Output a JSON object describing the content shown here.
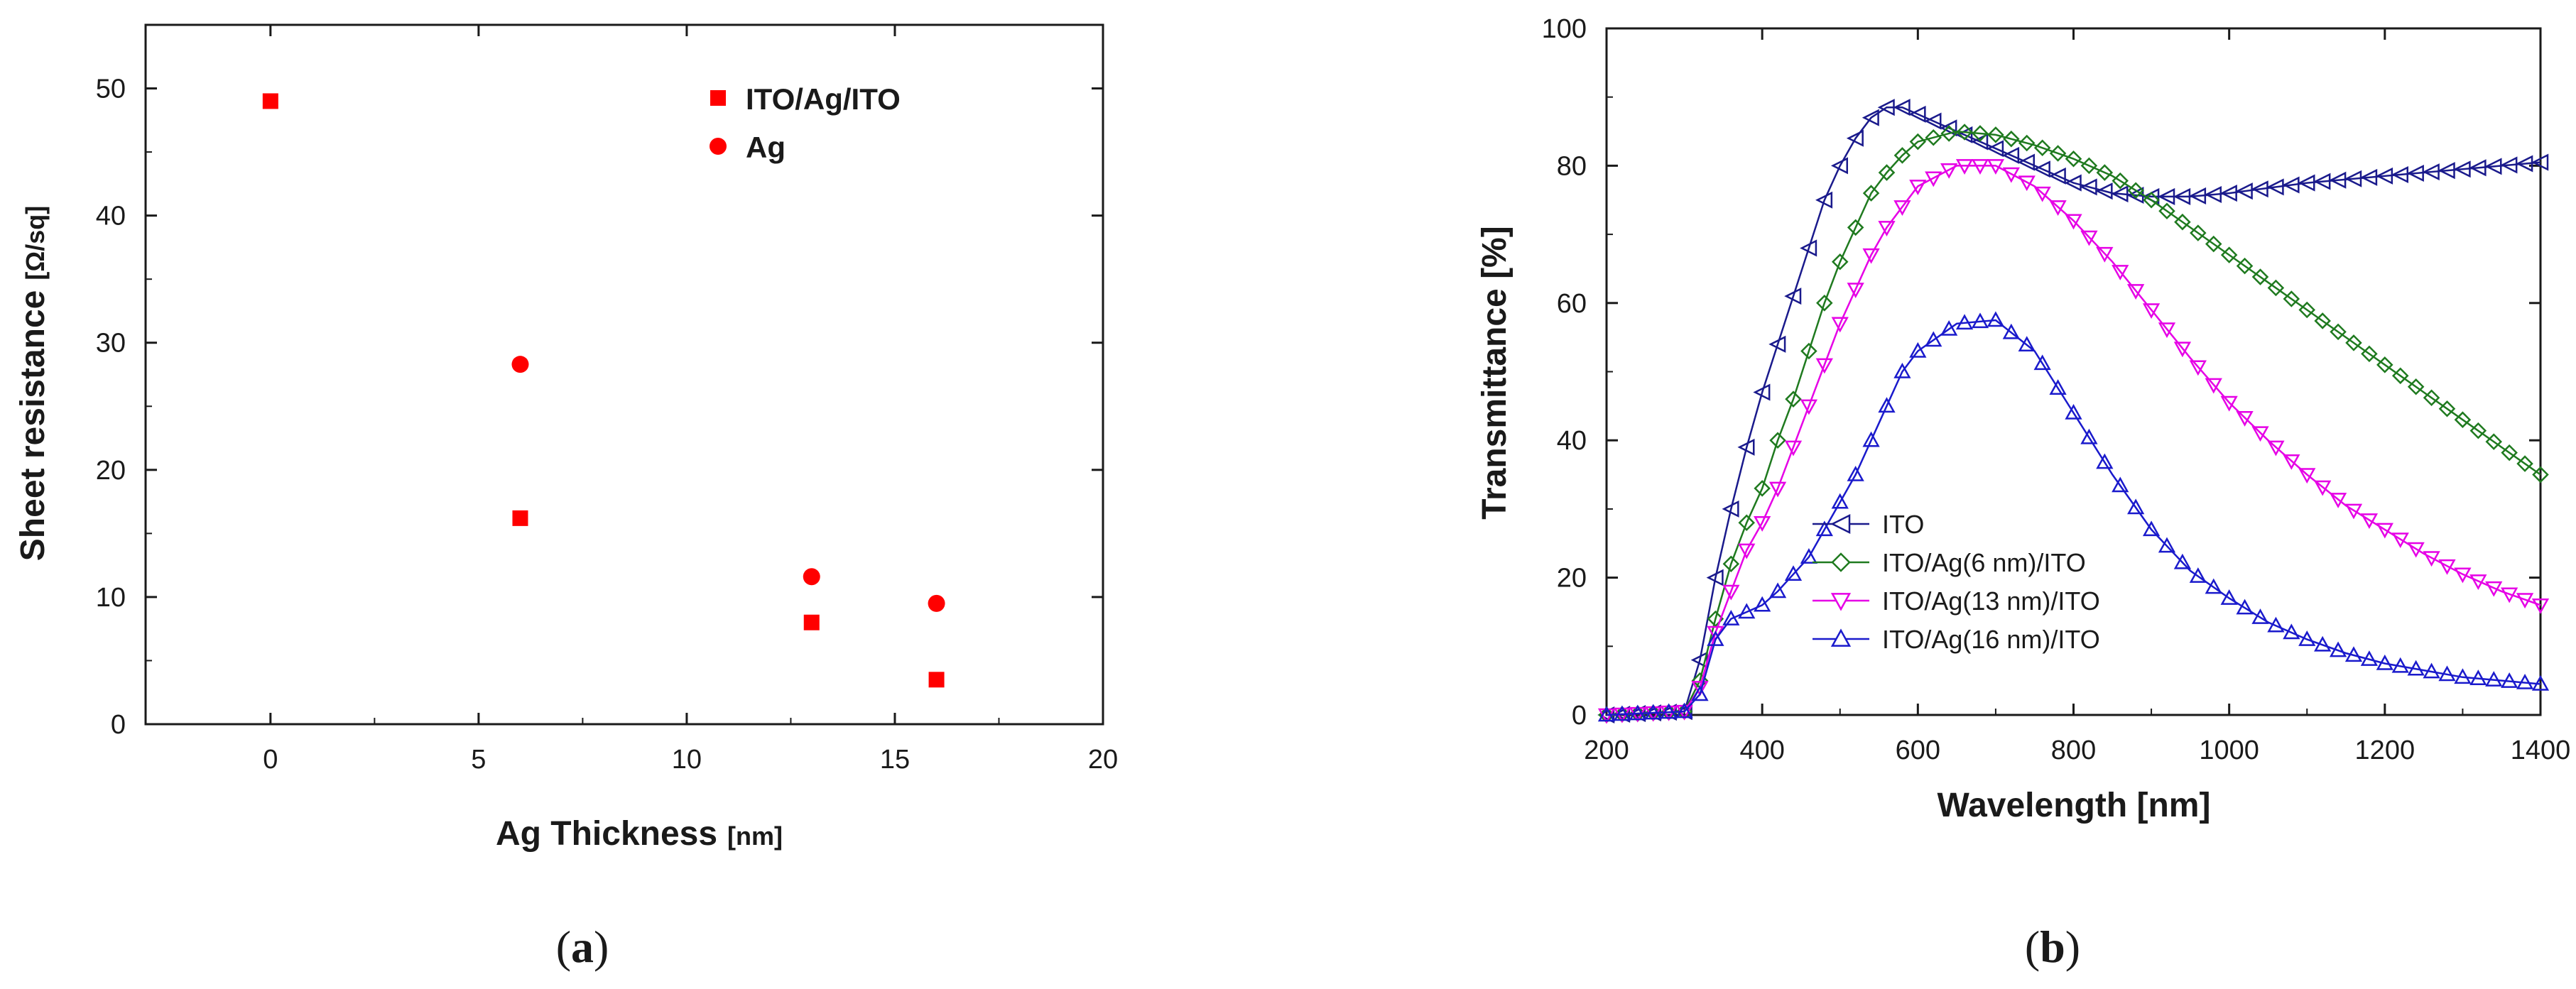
{
  "chart_data": [
    {
      "id": "a",
      "type": "scatter",
      "panel_label": "(a)",
      "panel_paren_open": "(",
      "panel_letter": "a",
      "panel_paren_close": ")",
      "xlabel": "Ag Thickness",
      "xunit": "[nm]",
      "ylabel": "Sheet resistance",
      "yunit": "[Ω/sq]",
      "xlim": [
        -3,
        20
      ],
      "ylim": [
        0,
        55
      ],
      "xticks": [
        0,
        5,
        10,
        15,
        20
      ],
      "yticks": [
        0,
        10,
        20,
        30,
        40,
        50
      ],
      "legend_position": "top-right",
      "color": "#ff0000",
      "series": [
        {
          "name": "ITO/Ag/ITO",
          "marker": "square",
          "x": [
            0,
            6,
            13,
            16
          ],
          "y": [
            49,
            16.2,
            8,
            3.5
          ]
        },
        {
          "name": "Ag",
          "marker": "circle",
          "x": [
            6,
            13,
            16
          ],
          "y": [
            28.3,
            11.6,
            9.5
          ]
        }
      ]
    },
    {
      "id": "b",
      "type": "line",
      "panel_label": "(b)",
      "panel_paren_open": "(",
      "panel_letter": "b",
      "panel_paren_close": ")",
      "xlabel": "Wavelength [nm]",
      "ylabel": "Transmittance [%]",
      "xlim": [
        200,
        1400
      ],
      "ylim": [
        0,
        100
      ],
      "xticks": [
        200,
        400,
        600,
        800,
        1000,
        1200,
        1400
      ],
      "yticks": [
        0,
        20,
        40,
        60,
        80,
        100
      ],
      "legend_position": "bottom-center",
      "series": [
        {
          "name": "ITO",
          "color": "#1a1a8c",
          "marker": "triangle-left",
          "x": [
            200,
            300,
            320,
            340,
            360,
            380,
            400,
            420,
            440,
            460,
            480,
            500,
            520,
            540,
            560,
            580,
            600,
            650,
            700,
            750,
            800,
            850,
            900,
            950,
            1000,
            1100,
            1200,
            1300,
            1400
          ],
          "y": [
            0,
            0.5,
            8,
            20,
            30,
            39,
            47,
            54,
            61,
            68,
            75,
            80,
            84,
            87,
            88.5,
            88.5,
            87.5,
            85,
            82.5,
            80,
            77.5,
            76,
            75.5,
            75.5,
            76,
            77.5,
            78.5,
            79.5,
            80.5
          ]
        },
        {
          "name": "ITO/Ag(6 nm)/ITO",
          "color": "#1f7a1f",
          "marker": "diamond",
          "x": [
            200,
            300,
            320,
            340,
            360,
            380,
            400,
            420,
            440,
            460,
            480,
            500,
            520,
            540,
            560,
            580,
            600,
            650,
            700,
            750,
            800,
            850,
            900,
            950,
            1000,
            1050,
            1100,
            1150,
            1200,
            1250,
            1300,
            1350,
            1400
          ],
          "y": [
            0,
            0.5,
            5,
            14,
            22,
            28,
            33,
            40,
            46,
            53,
            60,
            66,
            71,
            76,
            79,
            81.5,
            83.5,
            85,
            84.5,
            83,
            81,
            78.5,
            75,
            71,
            67,
            63,
            59,
            55,
            51,
            47,
            43,
            39,
            35
          ]
        },
        {
          "name": "ITO/Ag(13 nm)/ITO",
          "color": "#e600e6",
          "marker": "triangle-down",
          "x": [
            200,
            300,
            320,
            340,
            360,
            380,
            400,
            420,
            440,
            460,
            480,
            500,
            520,
            540,
            560,
            580,
            600,
            650,
            700,
            750,
            800,
            850,
            900,
            950,
            1000,
            1050,
            1100,
            1150,
            1200,
            1250,
            1300,
            1350,
            1400
          ],
          "y": [
            0,
            0.5,
            4,
            12,
            18,
            24,
            28,
            33,
            39,
            45,
            51,
            57,
            62,
            67,
            71,
            74,
            77,
            80,
            80,
            77,
            72,
            66,
            59,
            52,
            45.5,
            40,
            35,
            30.5,
            27,
            23.5,
            20.5,
            18,
            16
          ]
        },
        {
          "name": "ITO/Ag(16 nm)/ITO",
          "color": "#1a1acc",
          "marker": "triangle-up",
          "x": [
            200,
            300,
            320,
            340,
            360,
            380,
            400,
            420,
            440,
            460,
            480,
            500,
            520,
            540,
            560,
            580,
            600,
            650,
            700,
            750,
            800,
            850,
            900,
            950,
            1000,
            1050,
            1100,
            1150,
            1200,
            1250,
            1300,
            1350,
            1400
          ],
          "y": [
            0,
            0.5,
            3,
            11,
            14,
            15,
            16,
            18,
            20.5,
            23,
            27,
            31,
            35,
            40,
            45,
            50,
            53,
            57,
            57.5,
            53,
            44,
            35,
            27,
            21,
            17,
            13.5,
            11,
            9,
            7.5,
            6.5,
            5.5,
            5,
            4.5
          ]
        }
      ]
    }
  ]
}
